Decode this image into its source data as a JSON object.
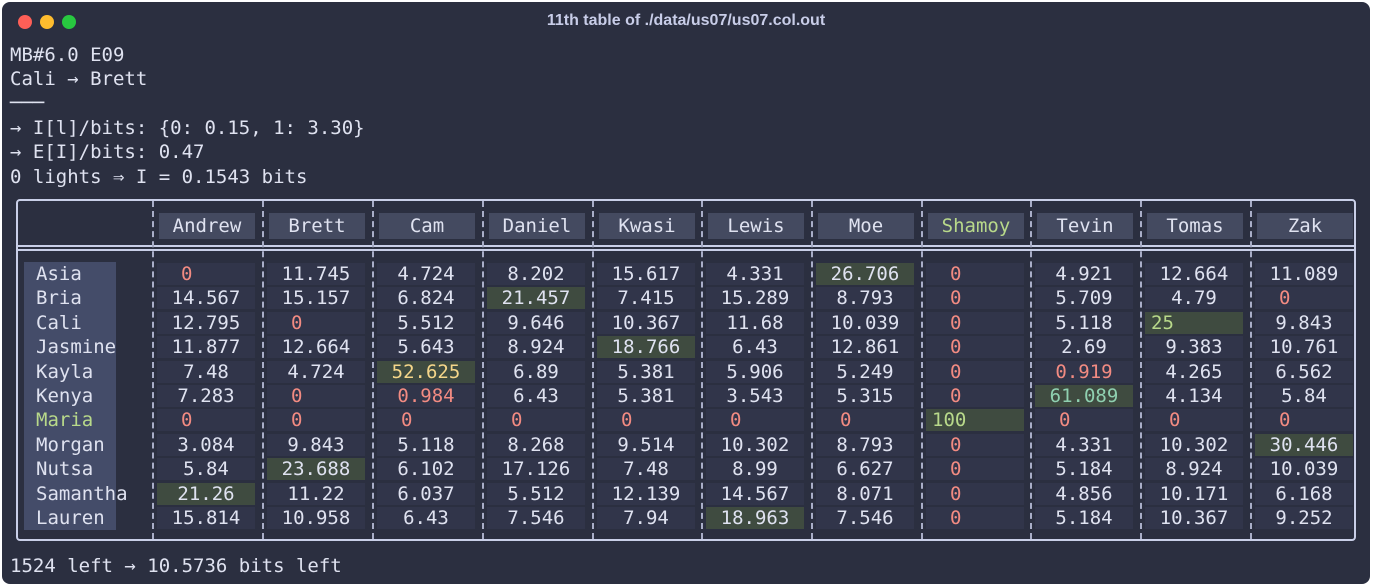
{
  "window": {
    "title": "11th table of ./data/us07/us07.col.out"
  },
  "header_lines": [
    "MB#6.0 E09",
    "Cali → Brett",
    "───",
    "→ I[l]/bits: {0: 0.15, 1: 3.30}",
    "→ E[I]/bits: 0.47",
    "0 lights ⇒ I = 0.1543 bits"
  ],
  "footer": "1524 left → 10.5736 bits left",
  "columns": [
    "Andrew",
    "Brett",
    "Cam",
    "Daniel",
    "Kwasi",
    "Lewis",
    "Moe",
    "Shamoy",
    "Tevin",
    "Tomas",
    "Zak"
  ],
  "rows": [
    {
      "name": "Asia",
      "values": [
        "0",
        "11.745",
        "4.724",
        "8.202",
        "15.617",
        "4.331",
        "26.706",
        "0",
        "4.921",
        "12.664",
        "11.089"
      ]
    },
    {
      "name": "Bria",
      "values": [
        "14.567",
        "15.157",
        "6.824",
        "21.457",
        "7.415",
        "15.289",
        "8.793",
        "0",
        "5.709",
        "4.79",
        "0"
      ]
    },
    {
      "name": "Cali",
      "values": [
        "12.795",
        "0",
        "5.512",
        "9.646",
        "10.367",
        "11.68",
        "10.039",
        "0",
        "5.118",
        "25",
        "9.843"
      ]
    },
    {
      "name": "Jasmine",
      "values": [
        "11.877",
        "12.664",
        "5.643",
        "8.924",
        "18.766",
        "6.43",
        "12.861",
        "0",
        "2.69",
        "9.383",
        "10.761"
      ]
    },
    {
      "name": "Kayla",
      "values": [
        "7.48",
        "4.724",
        "52.625",
        "6.89",
        "5.381",
        "5.906",
        "5.249",
        "0",
        "0.919",
        "4.265",
        "6.562"
      ]
    },
    {
      "name": "Kenya",
      "values": [
        "7.283",
        "0",
        "0.984",
        "6.43",
        "5.381",
        "3.543",
        "5.315",
        "0",
        "61.089",
        "4.134",
        "5.84"
      ]
    },
    {
      "name": "Maria",
      "values": [
        "0",
        "0",
        "0",
        "0",
        "0",
        "0",
        "0",
        "100",
        "0",
        "0",
        "0"
      ]
    },
    {
      "name": "Morgan",
      "values": [
        "3.084",
        "9.843",
        "5.118",
        "8.268",
        "9.514",
        "10.302",
        "8.793",
        "0",
        "4.331",
        "10.302",
        "30.446"
      ]
    },
    {
      "name": "Nutsa",
      "values": [
        "5.84",
        "23.688",
        "6.102",
        "17.126",
        "7.48",
        "8.99",
        "6.627",
        "0",
        "5.184",
        "8.924",
        "10.039"
      ]
    },
    {
      "name": "Samantha",
      "values": [
        "21.26",
        "11.22",
        "6.037",
        "5.512",
        "12.139",
        "14.567",
        "8.071",
        "0",
        "4.856",
        "10.171",
        "6.168"
      ]
    },
    {
      "name": "Lauren",
      "values": [
        "15.814",
        "10.958",
        "6.43",
        "7.546",
        "7.94",
        "18.963",
        "7.546",
        "0",
        "5.184",
        "10.367",
        "9.252"
      ]
    }
  ],
  "highlights": [
    [
      0,
      6
    ],
    [
      1,
      3
    ],
    [
      2,
      9
    ],
    [
      3,
      4
    ],
    [
      4,
      2
    ],
    [
      5,
      8
    ],
    [
      6,
      7
    ],
    [
      7,
      10
    ],
    [
      8,
      1
    ],
    [
      9,
      0
    ],
    [
      10,
      5
    ]
  ],
  "highlight_color": "#3f4b40",
  "matched_color": "#b8d98a"
}
